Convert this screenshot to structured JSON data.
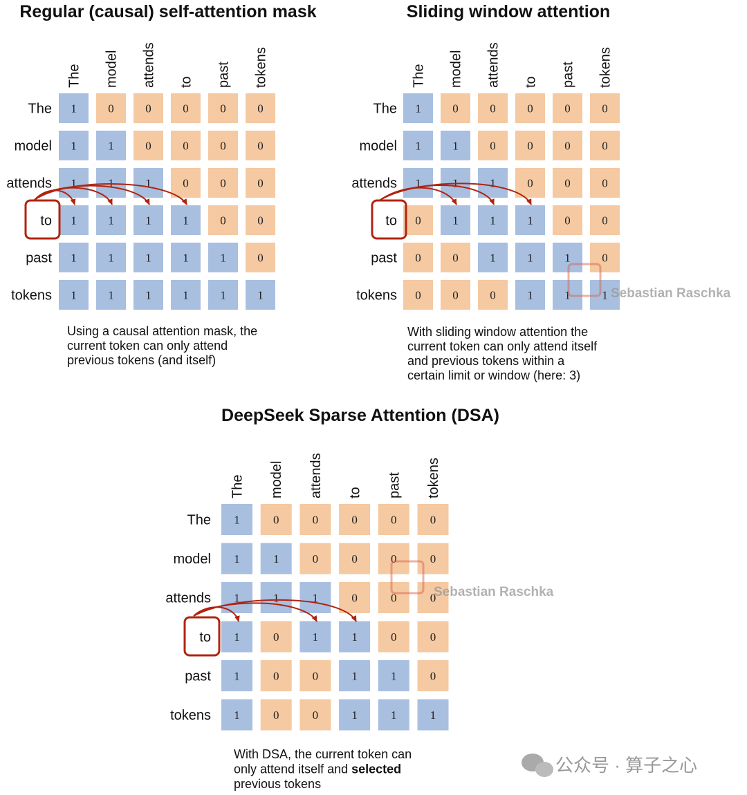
{
  "panels": [
    {
      "title": "Regular (causal) self-attention mask",
      "columns": [
        "The",
        "model",
        "attends",
        "to",
        "past",
        "tokens"
      ],
      "rows": [
        "The",
        "model",
        "attends",
        "to",
        "past",
        "tokens"
      ],
      "cells": [
        [
          1,
          0,
          0,
          0,
          0,
          0
        ],
        [
          1,
          1,
          0,
          0,
          0,
          0
        ],
        [
          1,
          1,
          1,
          0,
          0,
          0
        ],
        [
          1,
          1,
          1,
          1,
          0,
          0
        ],
        [
          1,
          1,
          1,
          1,
          1,
          0
        ],
        [
          1,
          1,
          1,
          1,
          1,
          1
        ]
      ],
      "caption": [
        {
          "text": "Using a causal attention mask, the"
        },
        {
          "text": "current token can only attend"
        },
        {
          "text": "previous tokens (and itself)"
        }
      ]
    },
    {
      "title": "Sliding window attention",
      "columns": [
        "The",
        "model",
        "attends",
        "to",
        "past",
        "tokens"
      ],
      "rows": [
        "The",
        "model",
        "attends",
        "to",
        "past",
        "tokens"
      ],
      "cells": [
        [
          1,
          0,
          0,
          0,
          0,
          0
        ],
        [
          1,
          1,
          0,
          0,
          0,
          0
        ],
        [
          1,
          1,
          1,
          0,
          0,
          0
        ],
        [
          0,
          1,
          1,
          1,
          0,
          0
        ],
        [
          0,
          0,
          1,
          1,
          1,
          0
        ],
        [
          0,
          0,
          0,
          1,
          1,
          1
        ]
      ],
      "caption": [
        {
          "text": "With sliding window attention the"
        },
        {
          "text": "current token can only attend itself"
        },
        {
          "text": "and previous tokens within a"
        },
        {
          "text": "certain limit or window (here: 3)"
        }
      ]
    },
    {
      "title": "DeepSeek Sparse Attention (DSA)",
      "columns": [
        "The",
        "model",
        "attends",
        "to",
        "past",
        "tokens"
      ],
      "rows": [
        "The",
        "model",
        "attends",
        "to",
        "past",
        "tokens"
      ],
      "cells": [
        [
          1,
          0,
          0,
          0,
          0,
          0
        ],
        [
          1,
          1,
          0,
          0,
          0,
          0
        ],
        [
          1,
          1,
          1,
          0,
          0,
          0
        ],
        [
          1,
          0,
          1,
          1,
          0,
          0
        ],
        [
          1,
          0,
          0,
          1,
          1,
          0
        ],
        [
          1,
          0,
          0,
          1,
          1,
          1
        ]
      ],
      "caption": [
        {
          "text": "With DSA, the current token can"
        },
        {
          "text": "only attend itself and ",
          "bold": "selected"
        },
        {
          "text": "previous tokens"
        }
      ]
    }
  ],
  "watermarks": [
    "Sebastian Raschka",
    "Sebastian Raschka"
  ],
  "footer": "公众号 · 算子之心"
}
